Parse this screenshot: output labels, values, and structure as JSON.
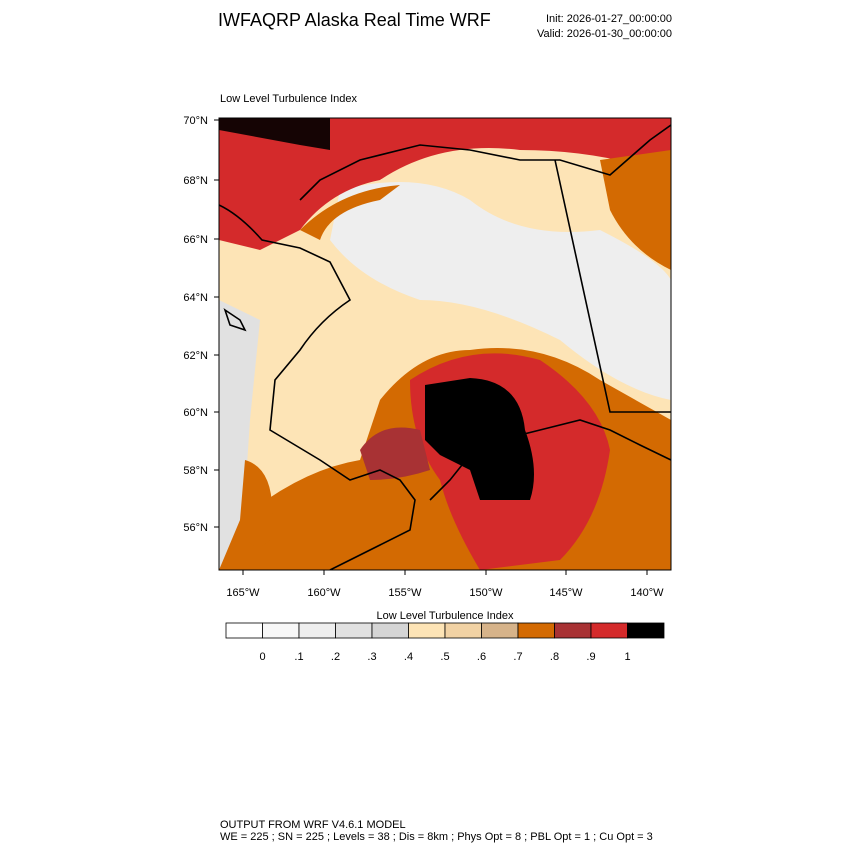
{
  "header": {
    "title": "IWFAQRP Alaska Real Time WRF",
    "init": "Init: 2026-01-27_00:00:00",
    "valid": "Valid: 2026-01-30_00:00:00"
  },
  "map": {
    "title": "Low Level Turbulence Index",
    "lat_labels": [
      "70°N",
      "68°N",
      "66°N",
      "64°N",
      "62°N",
      "60°N",
      "58°N",
      "56°N"
    ],
    "lon_labels": [
      "165°W",
      "160°W",
      "155°W",
      "150°W",
      "145°W",
      "140°W"
    ]
  },
  "colorbar": {
    "title": "Low Level Turbulence Index",
    "colors": [
      "#ffffff",
      "#f7f7f7",
      "#eeeeee",
      "#e1e1e1",
      "#d5d5d5",
      "#fde4b6",
      "#f1d2a4",
      "#d6b38a",
      "#d36a02",
      "#a83234",
      "#d42a2b",
      "#000000"
    ],
    "levels": [
      0,
      {
        "value": 0.1,
        "label": ".1"
      },
      {
        "value": 0.2,
        "label": ".2"
      },
      {
        "value": 0.3,
        "label": ".3"
      },
      {
        "value": 0.4,
        "label": ".4"
      },
      {
        "value": 0.5,
        "label": ".5"
      },
      {
        "value": 0.6,
        "label": ".6"
      },
      {
        "value": 0.7,
        "label": ".7"
      },
      {
        "value": 0.8,
        "label": ".8"
      },
      {
        "value": 0.9,
        "label": ".9"
      },
      1
    ]
  },
  "footer": {
    "line1": "OUTPUT FROM WRF V4.6.1 MODEL",
    "line2": "WE = 225 ; SN = 225 ; Levels = 38 ; Dis = 8km ; Phys Opt = 8 ; PBL Opt = 1 ; Cu Opt = 3"
  }
}
